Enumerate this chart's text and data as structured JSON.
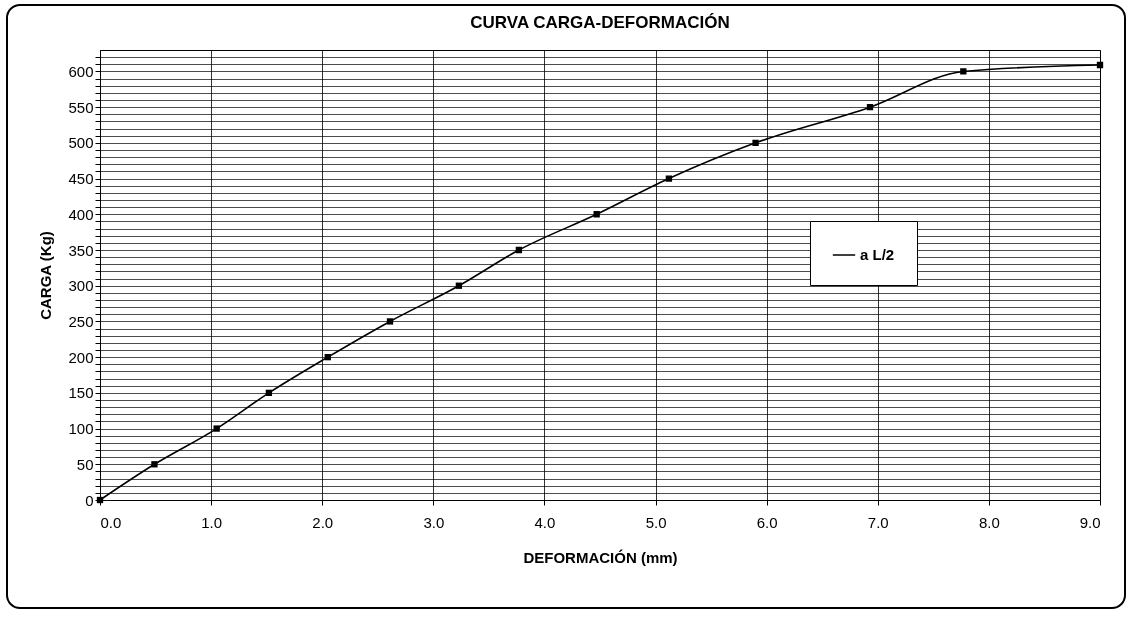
{
  "chart_data": {
    "type": "line",
    "title": "CURVA CARGA-DEFORMACIÓN",
    "xlabel": "DEFORMACIÓN (mm)",
    "ylabel": "CARGA (Kg)",
    "x": [
      0,
      0.49,
      1.05,
      1.52,
      2.05,
      2.61,
      3.23,
      3.77,
      4.47,
      5.12,
      5.9,
      6.93,
      7.77,
      9.0
    ],
    "series": [
      {
        "name": "a L/2",
        "color": "#000000",
        "values": [
          0,
          50,
          100,
          150,
          200,
          250,
          300,
          350,
          400,
          450,
          500,
          550,
          600,
          609
        ]
      }
    ],
    "xlim": [
      0,
      9
    ],
    "xticks": [
      {
        "value": 0,
        "label": "0.0"
      },
      {
        "value": 1,
        "label": "1.0"
      },
      {
        "value": 2,
        "label": "2.0"
      },
      {
        "value": 3,
        "label": "3.0"
      },
      {
        "value": 4,
        "label": "4.0"
      },
      {
        "value": 5,
        "label": "5.0"
      },
      {
        "value": 6,
        "label": "6.0"
      },
      {
        "value": 7,
        "label": "7.0"
      },
      {
        "value": 8,
        "label": "8.0"
      },
      {
        "value": 9,
        "label": "9.0"
      }
    ],
    "ylim": [
      0,
      630
    ],
    "yticks": [
      0,
      {
        "value": 10,
        "label": null
      },
      {
        "value": 20,
        "label": null
      },
      {
        "value": 30,
        "label": null
      },
      {
        "value": 40,
        "label": null
      },
      50,
      {
        "value": 60,
        "label": null
      },
      {
        "value": 70,
        "label": null
      },
      {
        "value": 80,
        "label": null
      },
      {
        "value": 90,
        "label": null
      },
      100,
      {
        "value": 110,
        "label": null
      },
      {
        "value": 120,
        "label": null
      },
      {
        "value": 130,
        "label": null
      },
      {
        "value": 140,
        "label": null
      },
      150,
      {
        "value": 160,
        "label": null
      },
      {
        "value": 170,
        "label": null
      },
      {
        "value": 180,
        "label": null
      },
      {
        "value": 190,
        "label": null
      },
      200,
      {
        "value": 210,
        "label": null
      },
      {
        "value": 220,
        "label": null
      },
      {
        "value": 230,
        "label": null
      },
      {
        "value": 240,
        "label": null
      },
      250,
      {
        "value": 260,
        "label": null
      },
      {
        "value": 270,
        "label": null
      },
      {
        "value": 280,
        "label": null
      },
      {
        "value": 290,
        "label": null
      },
      300,
      {
        "value": 310,
        "label": null
      },
      {
        "value": 320,
        "label": null
      },
      {
        "value": 330,
        "label": null
      },
      {
        "value": 340,
        "label": null
      },
      350,
      {
        "value": 360,
        "label": null
      },
      {
        "value": 370,
        "label": null
      },
      {
        "value": 380,
        "label": null
      },
      {
        "value": 390,
        "label": null
      },
      400,
      {
        "value": 410,
        "label": null
      },
      {
        "value": 420,
        "label": null
      },
      {
        "value": 430,
        "label": null
      },
      {
        "value": 440,
        "label": null
      },
      450,
      {
        "value": 460,
        "label": null
      },
      {
        "value": 470,
        "label": null
      },
      {
        "value": 480,
        "label": null
      },
      {
        "value": 490,
        "label": null
      },
      500,
      {
        "value": 510,
        "label": null
      },
      {
        "value": 520,
        "label": null
      },
      {
        "value": 530,
        "label": null
      },
      {
        "value": 540,
        "label": null
      },
      550,
      {
        "value": 560,
        "label": null
      },
      {
        "value": 570,
        "label": null
      },
      {
        "value": 580,
        "label": null
      },
      {
        "value": 590,
        "label": null
      },
      600,
      {
        "value": 610,
        "label": null
      },
      {
        "value": 620,
        "label": null
      }
    ],
    "grid": true,
    "legend": "right",
    "marker": "square",
    "line_style": "solid"
  }
}
